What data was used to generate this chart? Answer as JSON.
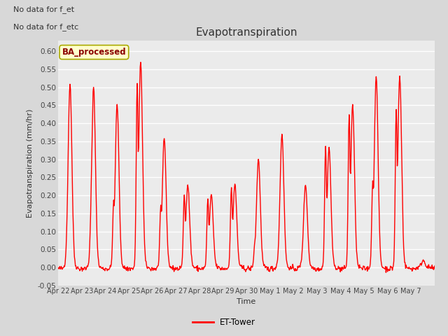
{
  "title": "Evapotranspiration",
  "ylabel": "Evapotranspiration (mm/hr)",
  "xlabel": "Time",
  "ylim": [
    -0.05,
    0.63
  ],
  "yticks": [
    -0.05,
    0.0,
    0.05,
    0.1,
    0.15,
    0.2,
    0.25,
    0.3,
    0.35,
    0.4,
    0.45,
    0.5,
    0.55,
    0.6
  ],
  "line_color": "red",
  "line_width": 1.0,
  "bg_color": "#d8d8d8",
  "plot_bg_color": "#ebebeb",
  "legend_label": "ET-Tower",
  "top_left_text1": "No data for f_et",
  "top_left_text2": "No data for f_etc",
  "box_label": "BA_processed",
  "box_facecolor": "#ffffcc",
  "box_edgecolor": "#aaaa00",
  "x_tick_labels": [
    "Apr 22",
    "Apr 23",
    "Apr 24",
    "Apr 25",
    "Apr 26",
    "Apr 27",
    "Apr 28",
    "Apr 29",
    "Apr 30",
    "May 1",
    "May 2",
    "May 3",
    "May 4",
    "May 5",
    "May 6",
    "May 7"
  ],
  "num_days": 16,
  "points_per_day": 48,
  "daily_peaks": [
    0.51,
    0.5,
    0.45,
    0.57,
    0.36,
    0.23,
    0.2,
    0.23,
    0.3,
    0.37,
    0.23,
    0.33,
    0.45,
    0.53,
    0.53,
    0.02
  ],
  "daily_peaks2": [
    0.0,
    0.0,
    0.16,
    0.48,
    0.15,
    0.19,
    0.18,
    0.21,
    0.06,
    0.0,
    0.0,
    0.32,
    0.4,
    0.21,
    0.41,
    0.0
  ]
}
